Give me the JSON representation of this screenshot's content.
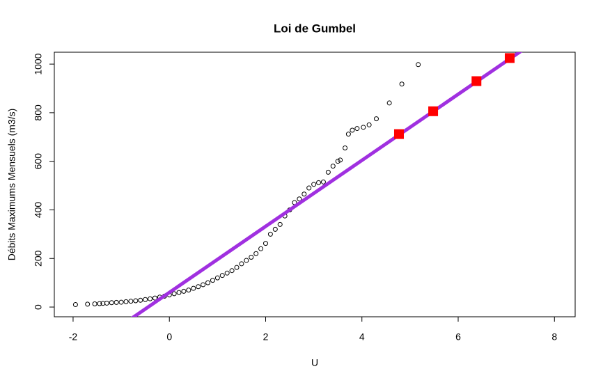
{
  "chart_data": {
    "type": "scatter",
    "title": "Loi de Gumbel",
    "x_label": "U",
    "y_label": "Débits Maximums Mensuels (m3/s)",
    "x": [
      -1.95,
      -1.7,
      -1.55,
      -1.45,
      -1.38,
      -1.3,
      -1.2,
      -1.1,
      -1.0,
      -0.9,
      -0.8,
      -0.7,
      -0.6,
      -0.5,
      -0.4,
      -0.3,
      -0.2,
      -0.1,
      0,
      0.1,
      0.2,
      0.3,
      0.4,
      0.5,
      0.6,
      0.7,
      0.8,
      0.9,
      1.0,
      1.1,
      1.2,
      1.3,
      1.4,
      1.5,
      1.6,
      1.7,
      1.8,
      1.9,
      2.0,
      2.1,
      2.2,
      2.3,
      2.4,
      2.5,
      2.6,
      2.7,
      2.8,
      2.9,
      3.0,
      3.1,
      3.2,
      3.3,
      3.4,
      3.5,
      3.55,
      3.65,
      3.72,
      3.8,
      3.9,
      4.03,
      4.15,
      4.3,
      4.57,
      4.83,
      5.17
    ],
    "values": [
      10,
      12,
      13,
      14,
      15,
      16,
      18,
      19,
      20,
      22,
      24,
      26,
      28,
      31,
      34,
      37,
      41,
      45,
      50,
      55,
      60,
      65,
      70,
      77,
      84,
      92,
      100,
      110,
      120,
      130,
      140,
      150,
      163,
      178,
      192,
      205,
      220,
      240,
      262,
      300,
      320,
      340,
      375,
      400,
      430,
      445,
      465,
      490,
      505,
      512,
      515,
      555,
      580,
      600,
      605,
      655,
      712,
      728,
      735,
      740,
      750,
      775,
      840,
      918,
      998
    ],
    "color": "#000000",
    "fit_line": {
      "intercept": 60,
      "slope": 136,
      "color": "#a030e0"
    },
    "highlight": {
      "x": [
        4.77,
        5.48,
        6.38,
        7.07
      ],
      "values": [
        712,
        806,
        930,
        1025
      ],
      "color": "#ff0000"
    },
    "xlim": [
      -2.39,
      8.43
    ],
    "ylim": [
      -40,
      1049
    ],
    "xticks": [
      -2,
      0,
      2,
      4,
      6,
      8
    ],
    "yticks": [
      0,
      200,
      400,
      600,
      800,
      1000
    ]
  }
}
